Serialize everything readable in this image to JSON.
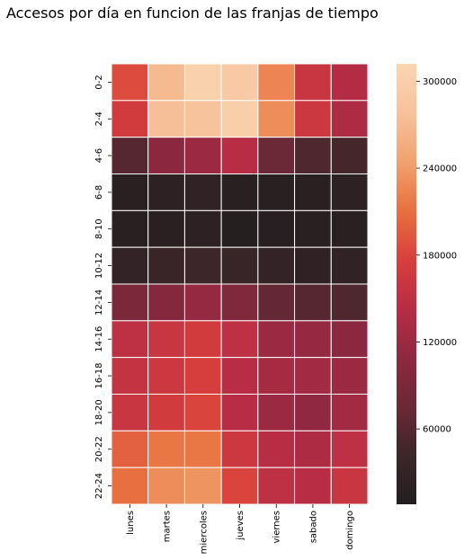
{
  "chart_data": {
    "type": "heatmap",
    "title": "Accesos por día en funcion de las franjas de tiempo",
    "x_categories": [
      "lunes",
      "martes",
      "miercoles",
      "jueves",
      "viernes",
      "sabado",
      "domingo"
    ],
    "y_categories": [
      "0-2",
      "2-4",
      "4-6",
      "6-8",
      "8-10",
      "10-12",
      "12-14",
      "14-16",
      "16-18",
      "18-20",
      "20-22",
      "22-24"
    ],
    "values": [
      [
        185000,
        270000,
        305000,
        290000,
        225000,
        160000,
        140000
      ],
      [
        170000,
        275000,
        280000,
        300000,
        230000,
        165000,
        135000
      ],
      [
        60000,
        105000,
        120000,
        145000,
        75000,
        55000,
        48000
      ],
      [
        18000,
        22000,
        28000,
        16000,
        16000,
        18000,
        22000
      ],
      [
        16000,
        18000,
        22000,
        12000,
        14000,
        16000,
        18000
      ],
      [
        30000,
        38000,
        42000,
        36000,
        30000,
        26000,
        28000
      ],
      [
        90000,
        100000,
        115000,
        95000,
        70000,
        60000,
        55000
      ],
      [
        150000,
        160000,
        170000,
        150000,
        120000,
        115000,
        105000
      ],
      [
        155000,
        165000,
        175000,
        145000,
        130000,
        125000,
        120000
      ],
      [
        160000,
        170000,
        180000,
        145000,
        120000,
        110000,
        125000
      ],
      [
        200000,
        215000,
        215000,
        165000,
        145000,
        135000,
        150000
      ],
      [
        210000,
        230000,
        235000,
        180000,
        150000,
        145000,
        160000
      ]
    ],
    "vmin": 8000,
    "vmax": 312000,
    "colorbar_ticks": [
      60000,
      120000,
      180000,
      240000,
      300000
    ],
    "colormap": [
      "#221e1f",
      "#3c2629",
      "#6c2836",
      "#8f2841",
      "#b72c44",
      "#d83f3d",
      "#e8703f",
      "#f1a26e",
      "#f7c29c",
      "#fad6b2"
    ],
    "cell_border_color": "#ffffff",
    "xlabel": "",
    "ylabel": ""
  }
}
